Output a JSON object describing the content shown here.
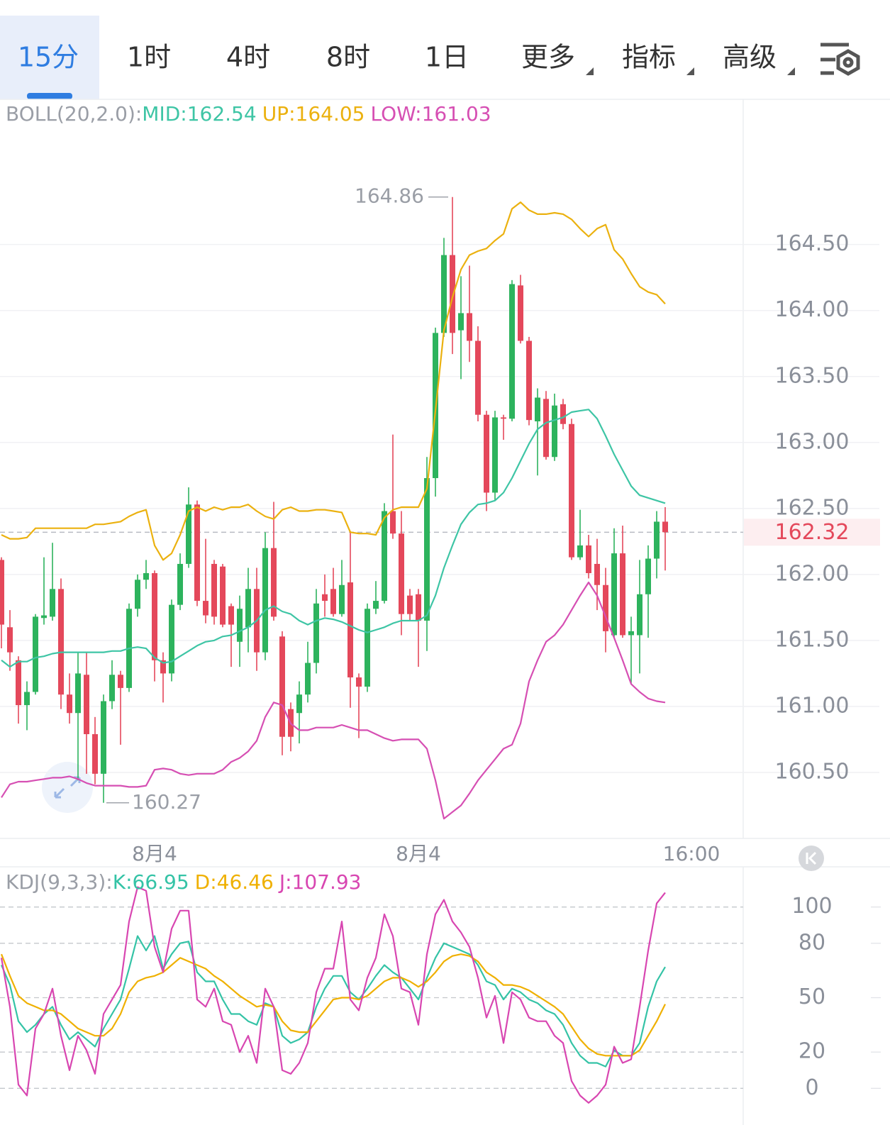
{
  "tabs": {
    "items": [
      "15分",
      "1时",
      "4时",
      "8时",
      "1日",
      "更多",
      "指标",
      "高级"
    ],
    "active": 0
  },
  "chart_data": [
    {
      "type": "candlestick",
      "indicator_label": "BOLL(20,2.0):",
      "categories": [
        null,
        null,
        null,
        null,
        null,
        null,
        null,
        null,
        null,
        null,
        null,
        null,
        null,
        null,
        null,
        null,
        null,
        null,
        "8月4",
        null,
        null,
        null,
        null,
        null,
        null,
        null,
        null,
        null,
        null,
        null,
        null,
        null,
        null,
        null,
        null,
        null,
        null,
        null,
        null,
        null,
        null,
        null,
        null,
        null,
        null,
        null,
        null,
        null,
        null,
        "8月4",
        null,
        null,
        null,
        null,
        null,
        null,
        null,
        null,
        null,
        null,
        null,
        null,
        null,
        null,
        null,
        null,
        null,
        null,
        null,
        null,
        null,
        null,
        null,
        null,
        null,
        null,
        null,
        null,
        "16:00"
      ],
      "open": [
        162.11,
        161.6,
        161.35,
        161.01,
        161.11,
        161.67,
        161.68,
        161.89,
        161.09,
        160.95,
        161.24,
        160.79,
        160.49,
        161.04,
        161.24,
        161.14,
        161.74,
        161.96,
        162.01,
        161.35,
        161.25,
        161.77,
        162.08,
        162.53,
        161.8,
        162.08,
        162.06,
        161.76,
        161.49,
        161.6,
        161.89,
        161.41,
        162.2,
        161.53,
        160.98,
        160.95,
        161.09,
        161.33,
        161.85,
        161.89,
        161.7,
        161.94,
        161.22,
        161.15,
        161.74,
        161.8,
        162.48,
        162.31,
        161.84,
        161.85,
        161.65,
        162.73,
        163.83,
        164.42,
        163.85,
        163.98,
        163.77,
        163.21,
        162.62,
        163.19,
        163.18,
        164.19,
        163.77,
        163.16,
        163.33,
        162.89,
        163.29,
        163.14,
        162.13,
        162.22,
        162.08,
        161.92,
        161.54,
        162.16,
        161.54,
        161.54,
        161.85,
        162.12,
        162.4
      ],
      "high": [
        162.13,
        161.73,
        161.38,
        161.19,
        161.7,
        162.13,
        162.24,
        161.97,
        161.25,
        161.41,
        161.41,
        160.92,
        161.09,
        161.35,
        161.27,
        161.78,
        162.0,
        162.11,
        162.03,
        161.41,
        161.81,
        162.16,
        162.66,
        162.56,
        162.27,
        162.11,
        162.08,
        161.78,
        161.84,
        162.05,
        162.05,
        162.32,
        162.55,
        161.57,
        161.03,
        161.19,
        161.49,
        161.89,
        162.0,
        162.05,
        162.11,
        162.33,
        161.25,
        161.78,
        161.95,
        162.54,
        163.06,
        162.48,
        161.89,
        161.89,
        162.89,
        163.87,
        164.55,
        164.86,
        164.26,
        164.34,
        163.88,
        163.24,
        163.24,
        163.21,
        164.23,
        164.27,
        163.8,
        163.41,
        163.39,
        163.37,
        163.33,
        163.18,
        162.49,
        162.3,
        162.27,
        162.05,
        162.35,
        162.37,
        161.68,
        162.11,
        162.22,
        162.48,
        162.51
      ],
      "low": [
        161.44,
        161.27,
        160.87,
        160.82,
        161.09,
        161.62,
        161.65,
        160.98,
        160.87,
        160.44,
        160.49,
        160.41,
        160.27,
        160.98,
        160.71,
        161.11,
        161.68,
        161.89,
        161.19,
        161.03,
        161.19,
        161.73,
        162.05,
        161.76,
        161.63,
        161.62,
        161.6,
        161.3,
        161.3,
        161.41,
        161.27,
        161.35,
        161.65,
        160.63,
        160.66,
        160.72,
        161.03,
        161.25,
        161.68,
        161.68,
        161.68,
        160.99,
        160.76,
        161.11,
        161.7,
        161.78,
        162.27,
        161.54,
        161.65,
        161.3,
        161.42,
        162.59,
        163.8,
        163.67,
        163.48,
        163.61,
        163.16,
        162.48,
        162.56,
        163.02,
        163.16,
        163.75,
        163.13,
        162.75,
        162.87,
        162.86,
        163.1,
        162.11,
        162.11,
        161.97,
        161.73,
        161.41,
        161.52,
        161.52,
        161.17,
        161.25,
        161.52,
        161.97,
        162.03
      ],
      "close": [
        161.62,
        161.41,
        161.01,
        161.11,
        161.68,
        161.69,
        161.89,
        161.09,
        160.95,
        161.25,
        160.79,
        160.49,
        161.04,
        161.24,
        161.14,
        161.74,
        161.96,
        162.01,
        161.35,
        161.25,
        161.77,
        162.08,
        162.53,
        161.8,
        161.69,
        161.68,
        161.62,
        161.62,
        161.74,
        161.89,
        161.41,
        162.2,
        161.68,
        160.77,
        160.77,
        161.09,
        161.33,
        161.78,
        161.8,
        161.7,
        161.92,
        161.22,
        161.15,
        161.74,
        161.8,
        162.48,
        162.31,
        161.7,
        161.7,
        161.65,
        162.73,
        163.83,
        164.42,
        163.83,
        163.98,
        163.77,
        163.21,
        162.62,
        163.19,
        163.18,
        164.2,
        163.77,
        163.17,
        163.34,
        162.89,
        163.28,
        163.14,
        162.13,
        162.22,
        162.01,
        161.92,
        161.57,
        162.16,
        161.54,
        161.57,
        161.85,
        162.12,
        162.4,
        162.32
      ],
      "up_color": "#2db35d",
      "down_color": "#e4485b",
      "series": [
        {
          "name": "MID:162.54",
          "color": "#3ec5a5",
          "values": [
            161.35,
            161.3,
            161.34,
            161.34,
            161.37,
            161.38,
            161.4,
            161.41,
            161.41,
            161.41,
            161.41,
            161.41,
            161.41,
            161.42,
            161.42,
            161.44,
            161.45,
            161.44,
            161.37,
            161.33,
            161.34,
            161.38,
            161.42,
            161.46,
            161.49,
            161.5,
            161.53,
            161.54,
            161.57,
            161.6,
            161.65,
            161.73,
            161.76,
            161.72,
            161.7,
            161.65,
            161.62,
            161.65,
            161.67,
            161.66,
            161.64,
            161.61,
            161.58,
            161.56,
            161.58,
            161.6,
            161.63,
            161.65,
            161.65,
            161.65,
            161.69,
            161.84,
            162.05,
            162.22,
            162.38,
            162.47,
            162.53,
            162.54,
            162.56,
            162.62,
            162.73,
            162.86,
            162.99,
            163.1,
            163.15,
            163.17,
            163.19,
            163.23,
            163.24,
            163.25,
            163.18,
            163.05,
            162.91,
            162.79,
            162.67,
            162.6,
            162.58,
            162.56,
            162.54
          ]
        },
        {
          "name": "UP:164.05",
          "color": "#ebb10f",
          "values": [
            162.3,
            162.27,
            162.27,
            162.28,
            162.35,
            162.35,
            162.35,
            162.35,
            162.35,
            162.35,
            162.35,
            162.38,
            162.38,
            162.39,
            162.4,
            162.44,
            162.47,
            162.49,
            162.22,
            162.11,
            162.16,
            162.3,
            162.48,
            162.51,
            162.48,
            162.51,
            162.49,
            162.51,
            162.51,
            162.53,
            162.48,
            162.44,
            162.42,
            162.49,
            162.51,
            162.48,
            162.48,
            162.49,
            162.49,
            162.48,
            162.47,
            162.32,
            162.31,
            162.31,
            162.3,
            162.43,
            162.49,
            162.51,
            162.51,
            162.51,
            162.65,
            163.24,
            163.85,
            164.1,
            164.31,
            164.42,
            164.45,
            164.47,
            164.53,
            164.58,
            164.77,
            164.82,
            164.76,
            164.73,
            164.73,
            164.74,
            164.73,
            164.69,
            164.62,
            164.56,
            164.62,
            164.65,
            164.46,
            164.39,
            164.28,
            164.18,
            164.14,
            164.12,
            164.05
          ]
        },
        {
          "name": "LOW:161.03",
          "color": "#d64fb3",
          "values": [
            160.31,
            160.41,
            160.43,
            160.43,
            160.44,
            160.45,
            160.46,
            160.46,
            160.47,
            160.45,
            160.42,
            160.4,
            160.4,
            160.4,
            160.4,
            160.39,
            160.39,
            160.4,
            160.52,
            160.53,
            160.52,
            160.49,
            160.48,
            160.49,
            160.49,
            160.49,
            160.52,
            160.58,
            160.61,
            160.66,
            160.74,
            160.92,
            161.03,
            161.01,
            160.87,
            160.82,
            160.82,
            160.84,
            160.84,
            160.84,
            160.86,
            160.84,
            160.82,
            160.82,
            160.79,
            160.76,
            160.74,
            160.75,
            160.75,
            160.75,
            160.68,
            160.44,
            160.15,
            160.2,
            160.25,
            160.34,
            160.44,
            160.52,
            160.6,
            160.68,
            160.71,
            160.87,
            161.19,
            161.35,
            161.49,
            161.54,
            161.62,
            161.73,
            161.84,
            161.94,
            161.84,
            161.68,
            161.52,
            161.35,
            161.17,
            161.11,
            161.06,
            161.04,
            161.03
          ]
        }
      ],
      "ylim": [
        160.0,
        165.6
      ],
      "yticks": [
        {
          "value": 164.5,
          "label": "164.50"
        },
        {
          "value": 164,
          "label": "164.00"
        },
        {
          "value": 163.5,
          "label": "163.50"
        },
        {
          "value": 163,
          "label": "163.00"
        },
        {
          "value": 162.5,
          "label": "162.50"
        },
        {
          "value": 162,
          "label": "162.00"
        },
        {
          "value": 161.5,
          "label": "161.50"
        },
        {
          "value": 161,
          "label": "161.00"
        },
        {
          "value": 160.5,
          "label": "160.50"
        }
      ],
      "grid": true,
      "last_price": {
        "value": 162.32,
        "label": "162.32"
      },
      "max_label": 164.86,
      "min_label": 160.27
    },
    {
      "type": "line",
      "indicator_label": "KDJ(9,3,3):",
      "series": [
        {
          "name": "K:66.95",
          "color": "#34c3a6",
          "values": [
            68,
            57,
            37,
            31,
            35,
            41,
            45,
            35,
            27,
            31,
            27,
            23,
            33,
            41,
            49,
            66,
            84,
            76,
            84,
            66,
            74,
            80,
            81,
            64,
            59,
            59,
            49,
            41,
            41,
            37,
            35,
            47,
            45,
            29,
            25,
            27,
            31,
            45,
            55,
            62,
            62,
            53,
            49,
            55,
            62,
            68,
            64,
            61,
            55,
            49,
            61,
            72,
            80,
            78,
            76,
            74,
            68,
            59,
            57,
            49,
            55,
            53,
            49,
            47,
            43,
            41,
            35,
            25,
            18,
            14,
            14,
            12,
            21,
            18,
            18,
            25,
            45,
            59,
            66.95
          ]
        },
        {
          "name": "D:46.46",
          "color": "#efb000",
          "values": [
            74,
            62,
            51,
            47,
            45,
            43,
            43,
            41,
            37,
            33,
            31,
            29,
            29,
            33,
            41,
            53,
            59,
            61,
            62,
            64,
            68,
            72,
            70,
            68,
            66,
            62,
            59,
            55,
            51,
            48,
            45,
            46,
            45,
            37,
            32,
            31,
            31,
            37,
            43,
            49,
            50,
            50,
            49,
            51,
            55,
            59,
            61,
            61,
            59,
            56,
            59,
            64,
            70,
            73,
            74,
            73,
            70,
            64,
            61,
            57,
            57,
            56,
            54,
            51,
            48,
            45,
            41,
            34,
            27,
            22,
            19,
            18,
            18,
            18,
            18,
            21,
            29,
            37,
            46.46
          ]
        },
        {
          "name": "J:107.93",
          "color": "#d846b1",
          "values": [
            72,
            45,
            2,
            -4,
            33,
            41,
            55,
            29,
            10,
            29,
            21,
            8,
            41,
            49,
            57,
            92,
            111,
            109,
            78,
            64,
            88,
            98,
            98,
            49,
            45,
            55,
            37,
            35,
            20,
            29,
            14,
            55,
            45,
            10,
            8,
            14,
            25,
            53,
            66,
            66,
            92,
            49,
            43,
            61,
            72,
            96,
            84,
            55,
            53,
            35,
            74,
            96,
            104,
            92,
            86,
            78,
            61,
            39,
            51,
            25,
            53,
            49,
            39,
            37,
            37,
            29,
            25,
            4,
            -4,
            -8,
            -4,
            2,
            23,
            14,
            16,
            45,
            76,
            102,
            107.93
          ]
        }
      ],
      "ylim": [
        -12,
        121
      ],
      "yticks": [
        100,
        80,
        50,
        20,
        0
      ],
      "grid": "dashed"
    }
  ]
}
